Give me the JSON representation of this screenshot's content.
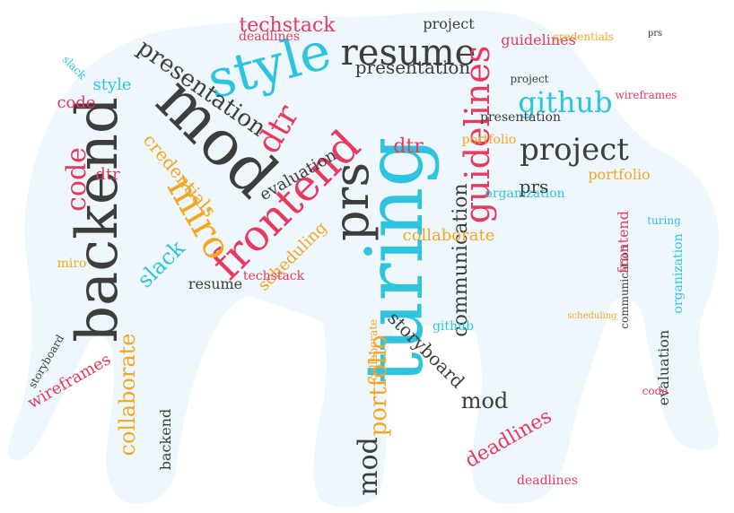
{
  "colors": {
    "background": "#ffffff",
    "silhouette": "#eef7fb",
    "palette": [
      "#3d3d3d",
      "#e8395f",
      "#f6a623",
      "#2ec4e0"
    ]
  },
  "words": [
    {
      "text": "turing",
      "c": 3
    },
    {
      "text": "backend",
      "c": 0
    },
    {
      "text": "mod",
      "c": 0
    },
    {
      "text": "style",
      "c": 3
    },
    {
      "text": "resume",
      "c": 0
    },
    {
      "text": "frontend",
      "c": 1
    },
    {
      "text": "prs",
      "c": 0
    },
    {
      "text": "dtr",
      "c": 1
    },
    {
      "text": "miro",
      "c": 2
    },
    {
      "text": "guidelines",
      "c": 1
    },
    {
      "text": "github",
      "c": 3
    },
    {
      "text": "project",
      "c": 0
    },
    {
      "text": "presentation",
      "c": 0
    },
    {
      "text": "code",
      "c": 1
    },
    {
      "text": "techstack",
      "c": 1
    },
    {
      "text": "collaborate",
      "c": 2
    },
    {
      "text": "portfolio",
      "c": 2
    },
    {
      "text": "communication",
      "c": 0
    },
    {
      "text": "storyboard",
      "c": 0
    },
    {
      "text": "deadlines",
      "c": 1
    },
    {
      "text": "evaluation",
      "c": 0
    },
    {
      "text": "slack",
      "c": 3
    },
    {
      "text": "credentials",
      "c": 2
    },
    {
      "text": "scheduling",
      "c": 2
    },
    {
      "text": "wireframes",
      "c": 1
    },
    {
      "text": "organization",
      "c": 3
    }
  ]
}
